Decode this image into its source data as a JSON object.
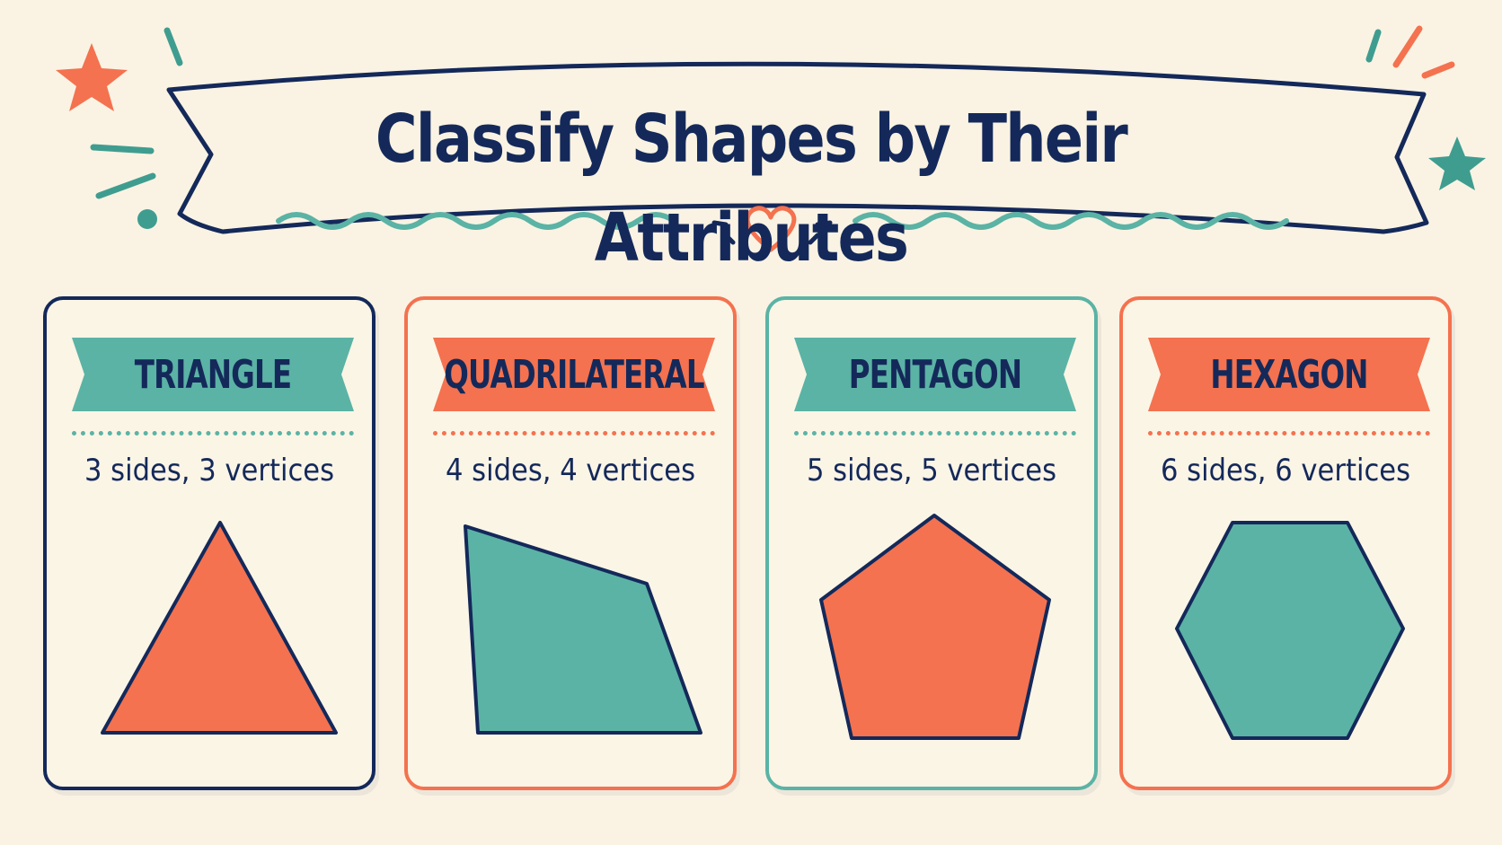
{
  "title": "Classify Shapes by Their Attributes",
  "colors": {
    "navy": "#14295a",
    "coral": "#f4724f",
    "teal": "#5bb3a5",
    "background": "#faf3e3"
  },
  "cards": [
    {
      "name": "TRIANGLE",
      "description": "3 sides, 3 vertices",
      "border_color": "#14295a",
      "banner_color": "#5bb3a5",
      "dot_color": "#5bb3a5",
      "shape_color": "#f4724f",
      "sides": 3
    },
    {
      "name": "QUADRILATERAL",
      "description": "4 sides, 4 vertices",
      "border_color": "#f4724f",
      "banner_color": "#f4724f",
      "dot_color": "#f4724f",
      "shape_color": "#5bb3a5",
      "sides": 4
    },
    {
      "name": "PENTAGON",
      "description": "5 sides, 5 vertices",
      "border_color": "#5bb3a5",
      "banner_color": "#5bb3a5",
      "dot_color": "#5bb3a5",
      "shape_color": "#f4724f",
      "sides": 5
    },
    {
      "name": "HEXAGON",
      "description": "6 sides, 6 vertices",
      "border_color": "#f4724f",
      "banner_color": "#f4724f",
      "dot_color": "#f4724f",
      "shape_color": "#5bb3a5",
      "sides": 6
    }
  ]
}
